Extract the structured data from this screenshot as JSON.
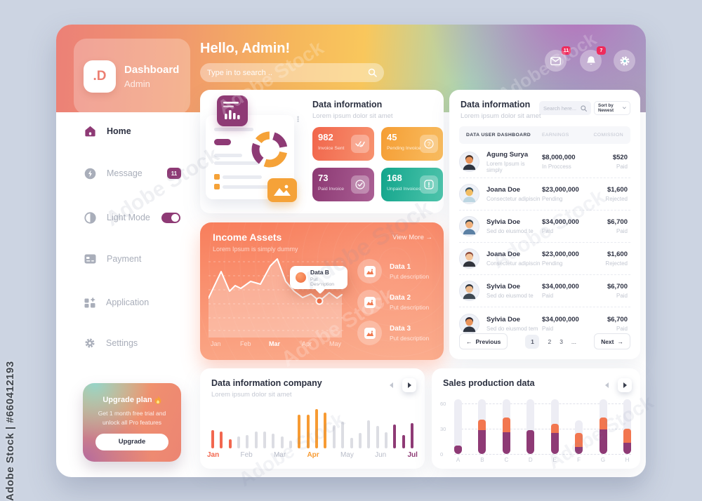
{
  "page": {
    "watermark_side": "Adobe Stock | #660412193",
    "watermark_diagonal": "Adobe Stock"
  },
  "header": {
    "logo_text": ".D",
    "brand_title": "Dashboard",
    "brand_subtitle": "Admin",
    "greeting": "Hello, Admin!",
    "search_placeholder": "Type in to search ..",
    "mail_badge": "11",
    "bell_badge": "7",
    "badge_color": "#ef2b5c"
  },
  "sidebar": {
    "accent": "#8e3a75",
    "items": [
      {
        "label": "Home",
        "active": true
      },
      {
        "label": "Message",
        "badge": "11"
      },
      {
        "label": "Light Mode",
        "toggle": "on"
      },
      {
        "label": "Payment"
      },
      {
        "label": "Application"
      },
      {
        "label": "Settings"
      }
    ],
    "upgrade": {
      "title": "Upgrade plan",
      "description": "Get 1 month free trial and unlock all Pro features",
      "button_label": "Upgrade"
    }
  },
  "info_card": {
    "title": "Data information",
    "subtitle": "Lorem ipsum dolor sit amet",
    "stats": [
      {
        "value": "982",
        "label": "Invoice Sent",
        "icon": "double-check-icon",
        "gradient": [
          "#f1664c",
          "#f7926f"
        ]
      },
      {
        "value": "45",
        "label": "Pending Invoice",
        "icon": "question-icon",
        "gradient": [
          "#f59e35",
          "#f9bd60"
        ]
      },
      {
        "value": "73",
        "label": "Paid Invoice",
        "icon": "check-circle-icon",
        "gradient": [
          "#8c3973",
          "#aa5f94"
        ]
      },
      {
        "value": "168",
        "label": "Unpaid Invoices",
        "icon": "alert-icon",
        "gradient": [
          "#13a58c",
          "#4fc5ac"
        ]
      }
    ]
  },
  "income_card": {
    "title": "Income Assets",
    "subtitle": "Lorem Ipsum is simply dummy",
    "view_more_label": "View More",
    "tooltip": {
      "title": "Data B",
      "description": "Put Description"
    },
    "legend": [
      {
        "title": "Data 1",
        "description": "Put description"
      },
      {
        "title": "Data 2",
        "description": "Put description"
      },
      {
        "title": "Data 3",
        "description": "Put description"
      }
    ],
    "chart_data": {
      "type": "area",
      "x_labels": [
        "Jan",
        "Feb",
        "Mar",
        "Apr",
        "May"
      ],
      "active_label": "Mar",
      "points": [
        [
          0,
          62
        ],
        [
          18,
          24
        ],
        [
          30,
          52
        ],
        [
          38,
          44
        ],
        [
          46,
          48
        ],
        [
          60,
          38
        ],
        [
          74,
          42
        ],
        [
          88,
          16
        ],
        [
          98,
          6
        ],
        [
          110,
          38
        ],
        [
          122,
          52
        ],
        [
          134,
          61
        ],
        [
          146,
          56
        ],
        [
          158,
          66
        ],
        [
          172,
          54
        ],
        [
          183,
          62
        ],
        [
          190,
          57
        ]
      ],
      "highlight_point": [
        158,
        66
      ],
      "grid_lines_y": [
        10,
        30,
        50,
        70,
        90,
        108
      ]
    }
  },
  "table_card": {
    "title": "Data information",
    "subtitle": "Lorem ipsum dolor sit amet",
    "search_placeholder": "Search here...",
    "sort_label": "Sort by Newest",
    "columns": [
      "DATA USER DASHBOARD",
      "EARNINGS",
      "COMISSION"
    ],
    "rows": [
      {
        "name": "Agung Surya",
        "description": "Lorem Ipsum is simply",
        "earnings": "$8,000,000",
        "earnings_status": "In Proccess",
        "commission": "$520",
        "commission_status": "Paid",
        "avatar": {
          "skin": "#e8935a",
          "hair": "#473229",
          "shirt": "#2e3440"
        }
      },
      {
        "name": "Joana Doe",
        "description": "Consectetur adipiscin",
        "earnings": "$23,000,000",
        "earnings_status": "Pending",
        "commission": "$1,600",
        "commission_status": "Rejected",
        "avatar": {
          "skin": "#f2bd63",
          "hair": "#2e4a5e",
          "shirt": "#bcd6e2"
        }
      },
      {
        "name": "Sylvia Doe",
        "description": "Sed do eiusmod te",
        "earnings": "$34,000,000",
        "earnings_status": "Paid",
        "commission": "$6,700",
        "commission_status": "Paid",
        "avatar": {
          "skin": "#f0b07c",
          "hair": "#32424e",
          "shirt": "#5b80a4"
        }
      },
      {
        "name": "Joana Doe",
        "description": "Consectetur adipiscin",
        "earnings": "$23,000,000",
        "earnings_status": "Pending",
        "commission": "$1,600",
        "commission_status": "Rejected",
        "avatar": {
          "skin": "#f3c59c",
          "hair": "#8d4a3a",
          "shirt": "#31343c"
        }
      },
      {
        "name": "Sylvia Doe",
        "description": "Sed do eiusmod te",
        "earnings": "$34,000,000",
        "earnings_status": "Paid",
        "commission": "$6,700",
        "commission_status": "Paid",
        "avatar": {
          "skin": "#edb98a",
          "hair": "#2b323c",
          "shirt": "#3d4852"
        }
      },
      {
        "name": "Sylvia Doe",
        "description": "Sed do eiusmod tem",
        "earnings": "$34,000,000",
        "earnings_status": "Paid",
        "commission": "$6,700",
        "commission_status": "Paid",
        "avatar": {
          "skin": "#e9935a",
          "hair": "#2c2a35",
          "shirt": "#303642"
        }
      }
    ],
    "pagination": {
      "previous_label": "Previous",
      "pages": [
        "1",
        "2",
        "3",
        "..."
      ],
      "active_page": "1",
      "next_label": "Next"
    }
  },
  "company_card": {
    "title": "Data information company",
    "subtitle": "Lorem ipsum dolor sit amet",
    "chart_data": {
      "type": "bar",
      "colors": {
        "jan": "#f2674f",
        "gray": "#dcdde3",
        "apr": "#f79b33",
        "jul": "#8e3a75"
      },
      "bars": [
        {
          "h": 26,
          "c": "jan"
        },
        {
          "h": 24,
          "c": "jan"
        },
        {
          "h": 13,
          "c": "jan"
        },
        {
          "h": 17,
          "c": "gray"
        },
        {
          "h": 19,
          "c": "gray"
        },
        {
          "h": 24,
          "c": "gray"
        },
        {
          "h": 24,
          "c": "gray"
        },
        {
          "h": 21,
          "c": "gray"
        },
        {
          "h": 17,
          "c": "gray"
        },
        {
          "h": 11,
          "c": "gray"
        },
        {
          "h": 48,
          "c": "apr"
        },
        {
          "h": 48,
          "c": "apr"
        },
        {
          "h": 56,
          "c": "apr"
        },
        {
          "h": 51,
          "c": "apr"
        },
        {
          "h": 33,
          "c": "gray"
        },
        {
          "h": 38,
          "c": "gray"
        },
        {
          "h": 15,
          "c": "gray"
        },
        {
          "h": 22,
          "c": "gray"
        },
        {
          "h": 40,
          "c": "gray"
        },
        {
          "h": 32,
          "c": "gray"
        },
        {
          "h": 23,
          "c": "gray"
        },
        {
          "h": 34,
          "c": "jul"
        },
        {
          "h": 19,
          "c": "jul"
        },
        {
          "h": 36,
          "c": "jul"
        }
      ],
      "months": [
        {
          "label": "Jan",
          "color": "#f2674f",
          "bold": true
        },
        {
          "label": "Feb",
          "color": "#b9bdc9",
          "bold": false
        },
        {
          "label": "Mar",
          "color": "#b9bdc9",
          "bold": false
        },
        {
          "label": "Apr",
          "color": "#f79b33",
          "bold": true
        },
        {
          "label": "May",
          "color": "#b9bdc9",
          "bold": false
        },
        {
          "label": "Jun",
          "color": "#b9bdc9",
          "bold": false
        },
        {
          "label": "Jul",
          "color": "#8e3a75",
          "bold": true
        }
      ]
    }
  },
  "sales_card": {
    "title": "Sales production data",
    "chart_data": {
      "type": "stacked-bar",
      "categories": [
        "A",
        "B",
        "C",
        "D",
        "E",
        "F",
        "G",
        "H"
      ],
      "y_ticks": [
        60,
        30,
        0
      ],
      "y_max": 65,
      "track": [
        65,
        65,
        65,
        65,
        65,
        40,
        65,
        65
      ],
      "series": [
        {
          "name": "purple",
          "color": "#8e3a75",
          "values": [
            10,
            28,
            26,
            28,
            25,
            8,
            29,
            13
          ]
        },
        {
          "name": "orange",
          "color": "#f2764f",
          "values": [
            0,
            13,
            17,
            0,
            11,
            17,
            14,
            17
          ]
        }
      ]
    }
  }
}
